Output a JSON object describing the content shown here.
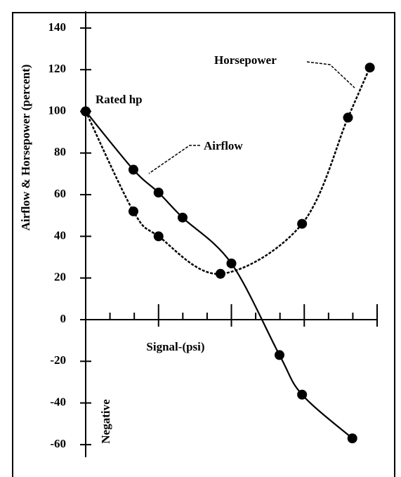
{
  "chart_data": {
    "type": "line",
    "ylabel": "Airflow & Horsepower (percent)",
    "xlabel": "Signal-(psi)",
    "annotations": {
      "rated": "Rated hp",
      "airflow": "Airflow",
      "horsepower": "Horsepower",
      "negative": "Negative"
    },
    "xlim": [
      0,
      4.2
    ],
    "xticks": [
      0,
      0.3333,
      0.6667,
      1,
      1.3333,
      1.6667,
      2,
      2.3333,
      2.6667,
      3,
      3.3333,
      3.6667,
      4
    ],
    "ylim": [
      -66,
      148
    ],
    "yticks": [
      -60,
      -40,
      -20,
      0,
      20,
      40,
      60,
      80,
      100,
      120,
      140
    ],
    "series": [
      {
        "name": "Airflow",
        "color": "#000000",
        "dash": false,
        "x": [
          0,
          0.655,
          1.0,
          1.33,
          2.0,
          2.66,
          2.97,
          3.66
        ],
        "values": [
          100,
          72,
          61,
          49,
          27,
          -17,
          -36,
          -57
        ]
      },
      {
        "name": "Horsepower",
        "color": "#000000",
        "dash": true,
        "x": [
          0,
          0.655,
          1.0,
          1.85,
          2.97,
          3.6,
          3.9
        ],
        "values": [
          100,
          52,
          40,
          22,
          46,
          97,
          121
        ]
      }
    ]
  }
}
